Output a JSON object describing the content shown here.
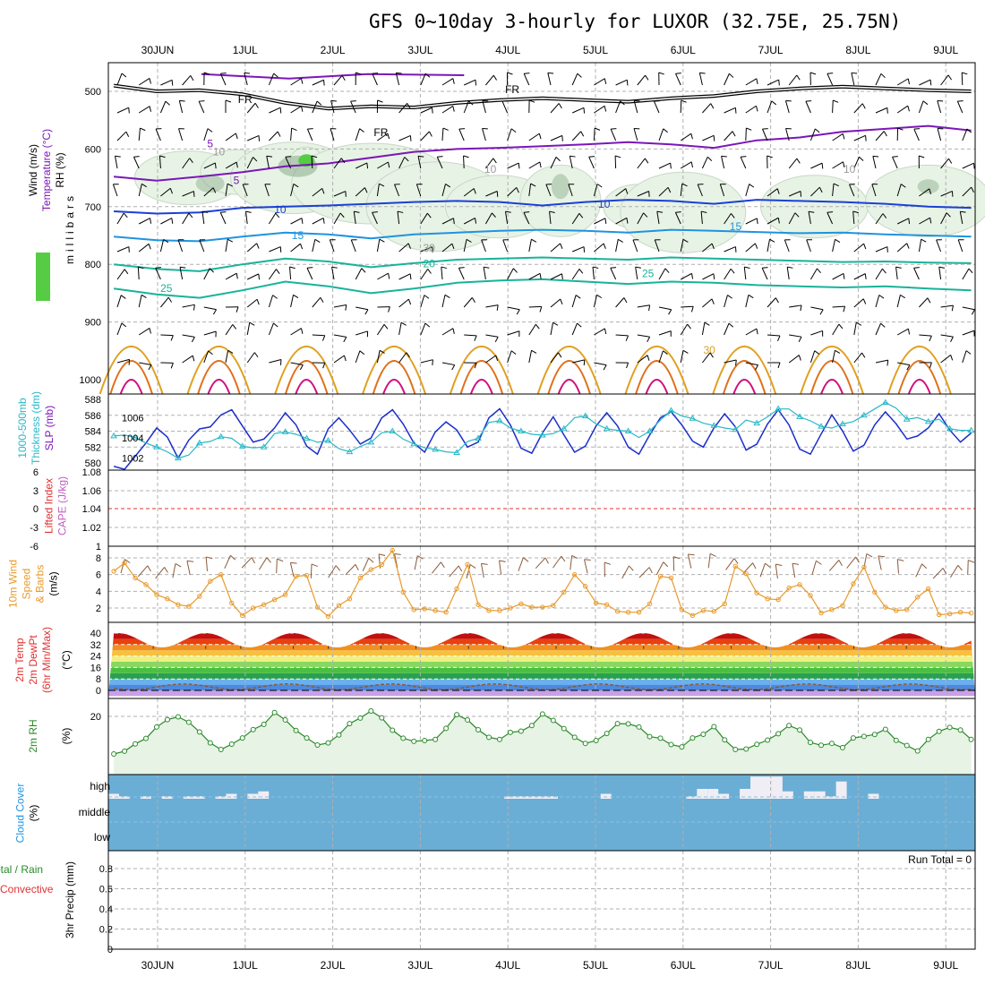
{
  "title": "GFS 0~10day 3-hourly for LUXOR (32.75E, 25.75N)",
  "run_total": "Run Total = 0",
  "colors": {
    "wind_barb": "#000000",
    "freezing": "#000000",
    "purple": "#7b16b8",
    "blue": "#1b3fd6",
    "light_blue": "#1f93e0",
    "teal": "#18b39a",
    "orange": "#e0a020",
    "dark_orange": "#e0701a",
    "magenta": "#d0107e",
    "rh_fill": "#e7f3e4",
    "rh_dark": "#8aab8a",
    "rh_green": "#55cc44",
    "slp": "#1b2fc8",
    "thickness": "#28b8c8",
    "lifted_zero": "#e03030",
    "wind10": "#e89a2a",
    "dewpt": "#8a5a3a",
    "rh2m": "#2a8a2a",
    "cloud_blue": "#6aaed6",
    "cloud_white": "#f0eef4",
    "grid": "#b0b0b0"
  },
  "chart_data": [
    {
      "panel": "upper-air cross-section",
      "type": "heatmap",
      "left_labels": [
        "Wind (m/s)",
        "Temperature (°C)",
        "RH (%)"
      ],
      "ylabel": "millibars",
      "y_ticks": [
        500,
        600,
        700,
        800,
        900,
        1000
      ],
      "freezing_label": "FR",
      "isotherm_labels": [
        {
          "value": "5",
          "time": 30.6,
          "p": 597
        },
        {
          "value": "5",
          "time": 0.9,
          "p": 661
        },
        {
          "value": "10",
          "time": 1.4,
          "p": 711
        },
        {
          "value": "10",
          "time": 5.1,
          "p": 702
        },
        {
          "value": "15",
          "time": 1.6,
          "p": 756
        },
        {
          "value": "15",
          "time": 6.6,
          "p": 741
        },
        {
          "value": "20",
          "time": 3.1,
          "p": 805
        },
        {
          "value": "25",
          "time": 30.1,
          "p": 848
        },
        {
          "value": "25",
          "time": 5.6,
          "p": 822
        },
        {
          "value": "30",
          "time": 6.3,
          "p": 955
        }
      ],
      "rh_labels": [
        {
          "value": "10",
          "time": 0.7,
          "p": 611
        },
        {
          "value": "10",
          "time": 3.8,
          "p": 641
        },
        {
          "value": "10",
          "time": 7.9,
          "p": 641
        },
        {
          "value": "30",
          "time": 3.1,
          "p": 778
        }
      ],
      "isotherms": [
        {
          "name": "0",
          "p": [
            490,
            500,
            498,
            505,
            520,
            530,
            526,
            528,
            520,
            515,
            512,
            515,
            518,
            512,
            508,
            500,
            495,
            492,
            495,
            498,
            500
          ]
        },
        {
          "name": "5",
          "p": [
            648,
            655,
            648,
            640,
            630,
            625,
            615,
            605,
            600,
            598,
            595,
            592,
            588,
            592,
            598,
            585,
            580,
            570,
            565,
            560,
            568
          ]
        },
        {
          "name": "10",
          "p": [
            708,
            712,
            710,
            702,
            700,
            698,
            695,
            692,
            690,
            692,
            698,
            692,
            688,
            690,
            695,
            688,
            690,
            692,
            695,
            700,
            702
          ]
        },
        {
          "name": "15",
          "p": [
            752,
            758,
            760,
            752,
            745,
            748,
            755,
            748,
            745,
            742,
            740,
            742,
            745,
            740,
            742,
            744,
            746,
            745,
            748,
            750,
            752
          ]
        },
        {
          "name": "20",
          "p": [
            800,
            808,
            812,
            800,
            790,
            795,
            805,
            798,
            792,
            790,
            788,
            790,
            792,
            788,
            790,
            792,
            794,
            796,
            795,
            797,
            798
          ]
        },
        {
          "name": "25",
          "p": [
            842,
            852,
            858,
            845,
            830,
            838,
            850,
            842,
            832,
            828,
            826,
            830,
            834,
            830,
            832,
            836,
            838,
            840,
            838,
            842,
            845
          ]
        }
      ]
    },
    {
      "panel": "thickness and sea-level pressure",
      "type": "line",
      "left_labels": [
        "1000-500mb",
        "Thickness (dm)",
        "SLP (mb)"
      ],
      "y_ticks_left": [
        580,
        582,
        584,
        586,
        588
      ],
      "y_ticks_right": [
        1002,
        1004,
        1006
      ],
      "series": [
        {
          "name": "SLP (mb)",
          "values": [
            1001.2,
            1000.9,
            1002.2,
            1003.5,
            1005.0,
            1004.1,
            1002.0,
            1003.8,
            1004.9,
            1005.1,
            1006.3,
            1006.8,
            1005.2,
            1003.6,
            1003.9,
            1005.0,
            1006.5,
            1005.3,
            1003.2,
            1002.4,
            1004.9,
            1006.0,
            1004.8,
            1003.4,
            1004.0,
            1006.0,
            1006.8,
            1005.4,
            1003.5,
            1002.6,
            1004.6,
            1005.6,
            1004.8,
            1003.1,
            1003.6,
            1006.0,
            1006.9,
            1005.3,
            1003.0,
            1002.5,
            1004.5,
            1006.1,
            1004.3,
            1002.6,
            1003.2,
            1005.2,
            1006.5,
            1005.2,
            1003.1,
            1002.4,
            1004.3,
            1006.0,
            1006.6,
            1005.3,
            1003.7,
            1003.1,
            1005.0,
            1006.4,
            1005.1,
            1002.8,
            1003.4,
            1005.4,
            1006.8,
            1005.3,
            1002.9,
            1002.4,
            1004.4,
            1006.3,
            1004.7,
            1002.7,
            1003.3,
            1005.3,
            1006.6,
            1005.4,
            1003.9,
            1004.2,
            1005.0,
            1006.4,
            1004.8,
            1003.6,
            1004.5
          ]
        },
        {
          "name": "1000-500mb Thickness (dm)",
          "values": [
            583.4,
            583.5,
            583.2,
            582.5,
            582.0,
            581.4,
            580.6,
            581.0,
            582.5,
            582.7,
            583.3,
            583.1,
            582.1,
            581.9,
            582.0,
            583.7,
            583.9,
            583.6,
            583.1,
            582.6,
            582.8,
            581.8,
            581.4,
            582.1,
            582.6,
            583.8,
            584.0,
            583.0,
            582.4,
            581.9,
            581.7,
            581.4,
            581.3,
            582.7,
            583.1,
            585.1,
            585.3,
            584.4,
            584.0,
            583.6,
            583.5,
            583.7,
            584.3,
            585.7,
            585.9,
            584.9,
            584.3,
            584.1,
            584.0,
            583.2,
            584.0,
            585.4,
            586.6,
            585.9,
            585.6,
            585.0,
            584.7,
            584.4,
            584.2,
            585.4,
            585.0,
            585.8,
            586.8,
            586.8,
            585.8,
            585.3,
            584.6,
            584.4,
            584.9,
            585.2,
            586.0,
            586.8,
            587.6,
            586.9,
            585.5,
            585.7,
            585.2,
            585.5,
            584.3,
            584.1,
            584.1
          ]
        }
      ]
    },
    {
      "panel": "stability",
      "type": "line",
      "left_labels": [
        "Lifted Index",
        "CAPE (J/kg)"
      ],
      "y_ticks_left": [
        "6",
        "3",
        "0",
        "-3",
        "-6"
      ],
      "y_ticks_right": [
        "1",
        "1.02",
        "1.04",
        "1.06",
        "1.08"
      ],
      "series": [
        {
          "name": "Lifted Index",
          "values": []
        },
        {
          "name": "CAPE (J/kg)",
          "values": []
        }
      ]
    },
    {
      "panel": "10m wind",
      "type": "line",
      "left_labels": [
        "10m Wind",
        "Speed",
        "& Barbs",
        "(m/s)"
      ],
      "y_ticks": [
        2,
        4,
        6,
        8
      ],
      "series": [
        {
          "name": "10m Wind Speed",
          "values": [
            6.4,
            7.4,
            5.6,
            4.8,
            3.6,
            3.1,
            2.4,
            2.2,
            3.4,
            5.2,
            6.0,
            2.6,
            1.1,
            2.0,
            2.4,
            3.0,
            3.6,
            5.8,
            5.9,
            2.1,
            1.0,
            2.3,
            3.1,
            5.6,
            6.6,
            7.2,
            8.9,
            3.9,
            1.8,
            1.9,
            1.7,
            1.5,
            4.3,
            7.2,
            2.4,
            1.7,
            1.7,
            2.0,
            2.5,
            2.1,
            2.1,
            2.3,
            3.9,
            6.0,
            4.6,
            2.6,
            2.4,
            1.6,
            1.5,
            1.5,
            2.5,
            5.8,
            5.6,
            1.8,
            1.1,
            1.7,
            1.6,
            2.5,
            7.0,
            6.1,
            3.8,
            3.1,
            3.0,
            4.4,
            4.8,
            3.5,
            1.4,
            1.8,
            2.3,
            4.9,
            6.9,
            3.9,
            2.1,
            1.7,
            1.8,
            3.3,
            4.3,
            1.2,
            1.3,
            1.5,
            1.4
          ]
        }
      ]
    },
    {
      "panel": "2m temperature",
      "type": "area",
      "left_labels": [
        "2m Temp",
        "2m DewPt",
        "(6hr Min/Max)"
      ],
      "ylabel": "(°C)",
      "y_ticks": [
        0,
        8,
        16,
        24,
        32,
        40
      ],
      "daily_temperature_range": [
        30,
        40
      ],
      "dewpoint_range": [
        0,
        5
      ]
    },
    {
      "panel": "2m relative humidity",
      "type": "area",
      "left_labels": [
        "2m RH"
      ],
      "ylabel": "(%)",
      "y_ticks": [
        20
      ],
      "series": [
        {
          "name": "2m RH",
          "values": [
            4.0,
            5.2,
            8.3,
            10.6,
            15.5,
            18.6,
            19.8,
            17.5,
            13.4,
            8.7,
            5.9,
            8.2,
            10.8,
            14.4,
            16.6,
            21.6,
            18.5,
            14.0,
            10.8,
            7.8,
            8.7,
            12.1,
            16.9,
            19.3,
            22.3,
            19.4,
            14.1,
            10.7,
            9.4,
            9.7,
            10.2,
            14.9,
            20.7,
            18.5,
            14.3,
            11.1,
            10.2,
            13.2,
            13.7,
            16.1,
            21.0,
            18.3,
            14.8,
            11.1,
            8.5,
            9.7,
            12.7,
            16.9,
            16.8,
            15.5,
            11.4,
            10.7,
            8.0,
            7.0,
            10.8,
            12.4,
            15.6,
            10.0,
            5.9,
            6.1,
            8.1,
            9.9,
            12.6,
            16.1,
            14.2,
            8.9,
            7.7,
            8.5,
            6.7,
            10.8,
            11.5,
            12.3,
            14.5,
            9.8,
            7.6,
            5.3,
            10.2,
            13.6,
            15.3,
            14.2,
            10.2
          ]
        }
      ]
    },
    {
      "panel": "cloud cover",
      "type": "bar",
      "left_labels": [
        "Cloud Cover",
        "(%)"
      ],
      "y_ticks": [
        "high",
        "middle",
        "low"
      ],
      "series": [
        {
          "name": "high cloud",
          "values": [
            10,
            5,
            0,
            5,
            0,
            5,
            0,
            5,
            5,
            0,
            5,
            10,
            0,
            10,
            15,
            0,
            0,
            0,
            0,
            0,
            0,
            0,
            0,
            0,
            0,
            0,
            0,
            0,
            0,
            0,
            0,
            0,
            0,
            0,
            0,
            0,
            0,
            5,
            5,
            5,
            5,
            5,
            0,
            0,
            0,
            0,
            10,
            0,
            0,
            0,
            0,
            0,
            0,
            0,
            5,
            20,
            20,
            10,
            0,
            20,
            45,
            45,
            45,
            15,
            0,
            15,
            15,
            5,
            35,
            0,
            0,
            10,
            0,
            0,
            0,
            0,
            0,
            0,
            0,
            0,
            0
          ]
        }
      ]
    },
    {
      "panel": "precipitation",
      "type": "bar",
      "left_labels": [
        "Total / Rain",
        "Convective",
        "3hr Precip (mm)"
      ],
      "y_ticks": [
        0,
        0.2,
        0.4,
        0.6,
        0.8
      ],
      "series": [
        {
          "name": "3hr Precip",
          "values": []
        }
      ]
    }
  ],
  "time_axis": {
    "x_range": [
      29.5,
      9.29
    ],
    "date_labels": [
      "30JUN",
      "1JUL",
      "2JUL",
      "3JUL",
      "4JUL",
      "5JUL",
      "6JUL",
      "7JUL",
      "8JUL",
      "9JUL"
    ]
  }
}
